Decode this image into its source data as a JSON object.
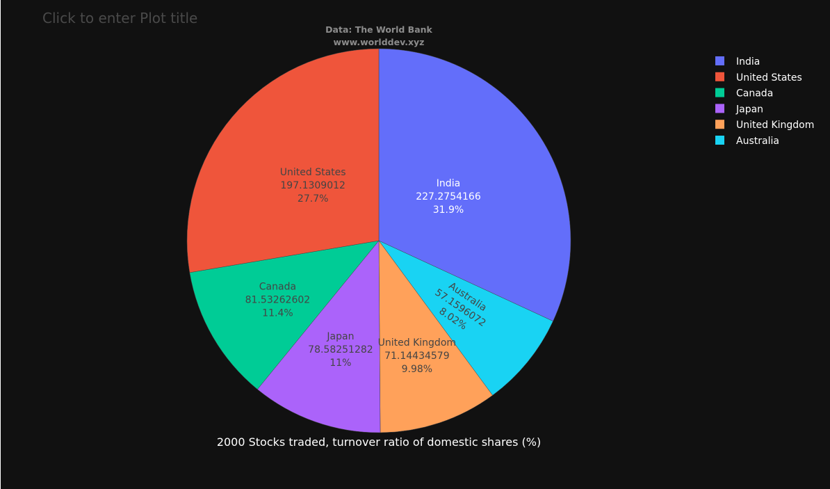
{
  "background_color": "#111111",
  "plot_border_color": "#ffffff",
  "title_placeholder": "Click to enter Plot title",
  "annotation": {
    "line1": "Data: The World Bank",
    "line2": "www.worlddev.xyz"
  },
  "chart_data": {
    "type": "pie",
    "title": "",
    "pie_title": "2000 Stocks traded, turnover ratio of domestic shares (%)",
    "direction": "clockwise",
    "start_angle_deg": 0,
    "legend_position": "top-right",
    "slices": [
      {
        "label": "India",
        "value": 227.2754166,
        "value_text": "227.2754166",
        "percent_text": "31.9%",
        "color": "#636efa",
        "text_color": "#ffffff"
      },
      {
        "label": "Australia",
        "value": 57.1596072,
        "value_text": "57.1596072",
        "percent_text": "8.02%",
        "color": "#19d3f3",
        "text_color": "#444444"
      },
      {
        "label": "United Kingdom",
        "value": 71.14434579,
        "value_text": "71.14434579",
        "percent_text": "9.98%",
        "color": "#ffa15a",
        "text_color": "#444444"
      },
      {
        "label": "Japan",
        "value": 78.58251282,
        "value_text": "78.58251282",
        "percent_text": "11%",
        "color": "#ab63fa",
        "text_color": "#444444"
      },
      {
        "label": "Canada",
        "value": 81.53262602,
        "value_text": "81.53262602",
        "percent_text": "11.4%",
        "color": "#00cc96",
        "text_color": "#444444"
      },
      {
        "label": "United States",
        "value": 197.1309012,
        "value_text": "197.1309012",
        "percent_text": "27.7%",
        "color": "#ef553b",
        "text_color": "#444444"
      }
    ],
    "legend": [
      {
        "label": "India",
        "color": "#636efa"
      },
      {
        "label": "United States",
        "color": "#ef553b"
      },
      {
        "label": "Canada",
        "color": "#00cc96"
      },
      {
        "label": "Japan",
        "color": "#ab63fa"
      },
      {
        "label": "United Kingdom",
        "color": "#ffa15a"
      },
      {
        "label": "Australia",
        "color": "#19d3f3"
      }
    ]
  }
}
